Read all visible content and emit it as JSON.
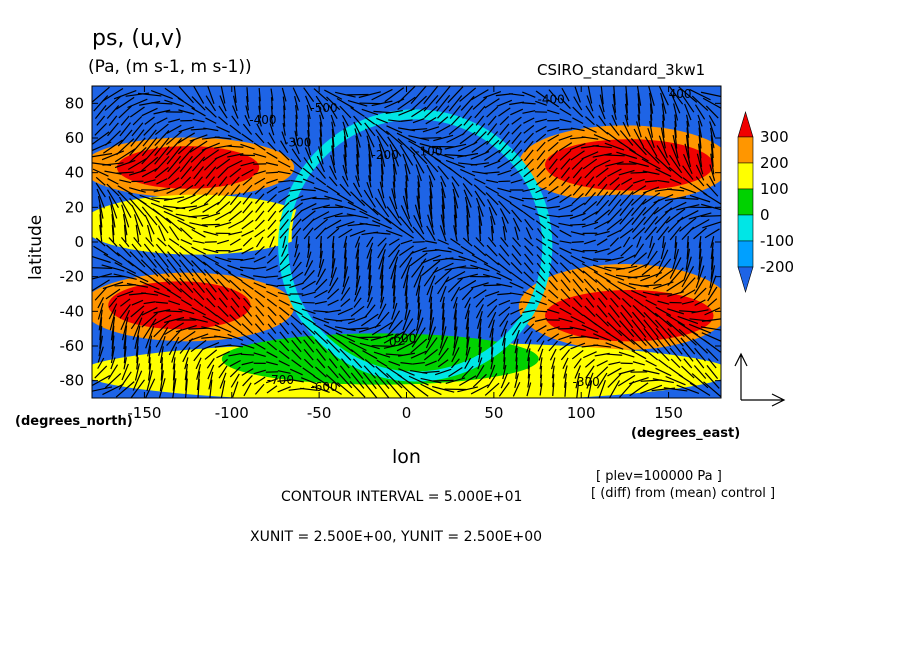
{
  "header": {
    "title": "ps, (u,v)",
    "units": "(Pa, (m s-1, m s-1))",
    "dataset": "CSIRO_standard_3kw1"
  },
  "axes": {
    "ylabel": "latitude",
    "ylabel_units": "(degrees_north)",
    "xlabel": "lon",
    "xlabel_units": "(degrees_east)"
  },
  "notes": {
    "plev": "[ plev=100000 Pa ]",
    "diff": "[ (diff) from (mean) control ]",
    "contour_interval": "CONTOUR INTERVAL = 5.000E+01",
    "xyunit": "XUNIT = 2.500E+00, YUNIT = 2.500E+00"
  },
  "colors": {
    "lt_neg200": "#1e64e6",
    "neg200_neg100": "#00a0ff",
    "neg100_0": "#00e6e6",
    "0_100": "#00d200",
    "100_200": "#ffff00",
    "200_300": "#ff9600",
    "gt_300": "#f00000"
  },
  "chart_data": {
    "type": "heatmap",
    "title": "ps, (u,v)",
    "xlabel": "lon",
    "ylabel": "latitude",
    "xlim": [
      -180,
      180
    ],
    "ylim": [
      -90,
      90
    ],
    "x_ticks": [
      "-150",
      "-100",
      "-50",
      "0",
      "50",
      "100",
      "150"
    ],
    "x_tick_values": [
      -150,
      -100,
      -50,
      0,
      50,
      100,
      150
    ],
    "y_ticks": [
      "80",
      "60",
      "40",
      "20",
      "0",
      "-20",
      "-40",
      "-60",
      "-80"
    ],
    "y_tick_values": [
      80,
      60,
      40,
      20,
      0,
      -20,
      -40,
      -60,
      -80
    ],
    "colorbar": {
      "labels": [
        "300",
        "200",
        "100",
        "0",
        "-100",
        "-200"
      ],
      "levels": [
        300,
        200,
        100,
        0,
        -100,
        -200
      ]
    },
    "contour_labels": [
      "-500",
      "-400",
      "-300",
      "-200",
      "-100",
      "0",
      "-700",
      "-600",
      "-400",
      "-300",
      "400",
      "-600"
    ],
    "contour_interval": 50,
    "regions": [
      {
        "lon": [
          -180,
          180
        ],
        "lat": [
          60,
          90
        ],
        "value": -350
      },
      {
        "lon": [
          -180,
          -70
        ],
        "lat": [
          28,
          58
        ],
        "value": 200
      },
      {
        "lon": [
          -160,
          -90
        ],
        "lat": [
          33,
          53
        ],
        "value": 350
      },
      {
        "lon": [
          -180,
          -60
        ],
        "lat": [
          -5,
          25
        ],
        "value": 150
      },
      {
        "lon": [
          -180,
          -70
        ],
        "lat": [
          -55,
          -20
        ],
        "value": 200
      },
      {
        "lon": [
          -165,
          -95
        ],
        "lat": [
          -48,
          -25
        ],
        "value": 350
      },
      {
        "lon": [
          -60,
          70
        ],
        "lat": [
          -55,
          60
        ],
        "value": -350
      },
      {
        "lon": [
          70,
          180
        ],
        "lat": [
          25,
          65
        ],
        "value": 200
      },
      {
        "lon": [
          85,
          170
        ],
        "lat": [
          32,
          57
        ],
        "value": 350
      },
      {
        "lon": [
          70,
          180
        ],
        "lat": [
          -5,
          25
        ],
        "value": -300
      },
      {
        "lon": [
          70,
          180
        ],
        "lat": [
          -60,
          -15
        ],
        "value": 200
      },
      {
        "lon": [
          85,
          170
        ],
        "lat": [
          -55,
          -30
        ],
        "value": 350
      },
      {
        "lon": [
          -180,
          180
        ],
        "lat": [
          -90,
          -60
        ],
        "value": 150
      },
      {
        "lon": [
          -100,
          70
        ],
        "lat": [
          -80,
          -55
        ],
        "value": 50
      }
    ]
  }
}
